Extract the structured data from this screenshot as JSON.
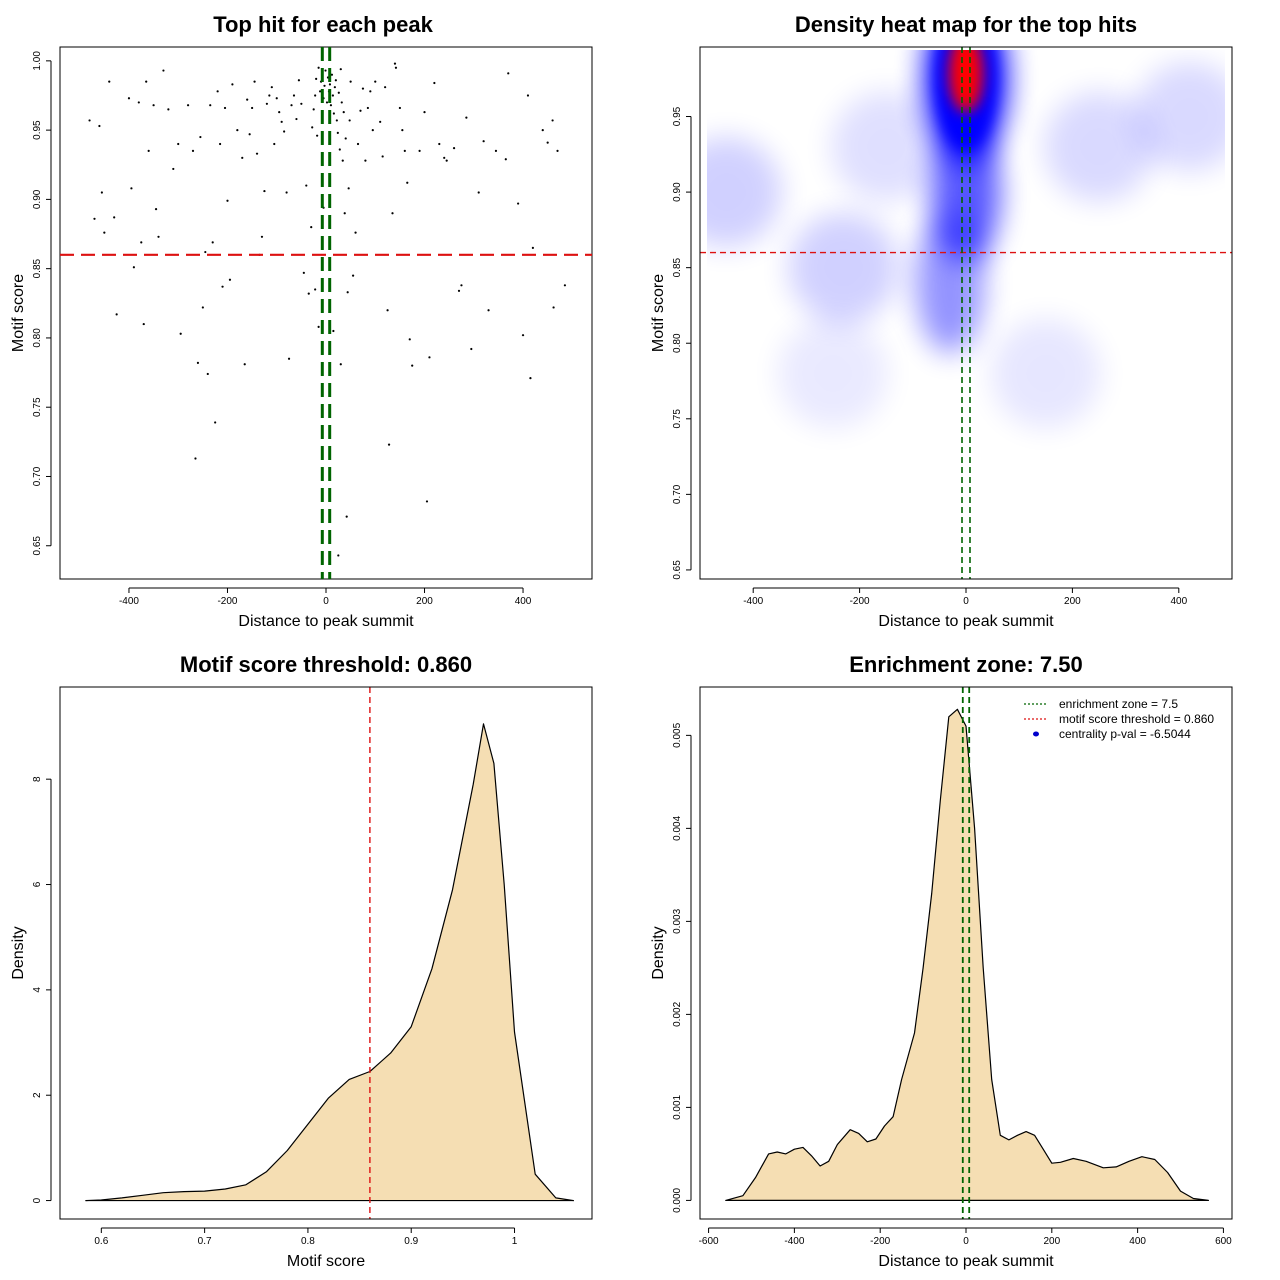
{
  "chart_data": [
    {
      "id": "scatter",
      "type": "scatter",
      "title": "Top hit for each peak",
      "xlabel": "Distance to peak summit",
      "ylabel": "Motif score",
      "xlim": [
        -540,
        540
      ],
      "ylim": [
        0.626,
        1.01
      ],
      "xticks": [
        -400,
        -200,
        0,
        200,
        400
      ],
      "yticks": [
        0.65,
        0.7,
        0.75,
        0.8,
        0.85,
        0.9,
        0.95,
        1.0
      ],
      "hline": {
        "y": 0.86,
        "color": "#dd1111"
      },
      "vlines": {
        "x": [
          -7.5,
          7.5
        ],
        "color": "#006400"
      },
      "point_color": "#000000",
      "points": [
        [
          -480,
          0.957
        ],
        [
          -470,
          0.886
        ],
        [
          -460,
          0.953
        ],
        [
          -455,
          0.905
        ],
        [
          -450,
          0.876
        ],
        [
          -440,
          0.985
        ],
        [
          -430,
          0.887
        ],
        [
          -425,
          0.817
        ],
        [
          -400,
          0.973
        ],
        [
          -395,
          0.908
        ],
        [
          -390,
          0.851
        ],
        [
          -380,
          0.97
        ],
        [
          -375,
          0.869
        ],
        [
          -370,
          0.81
        ],
        [
          -365,
          0.985
        ],
        [
          -360,
          0.935
        ],
        [
          -350,
          0.968
        ],
        [
          -345,
          0.893
        ],
        [
          -340,
          0.873
        ],
        [
          -330,
          0.993
        ],
        [
          -320,
          0.965
        ],
        [
          -310,
          0.922
        ],
        [
          -300,
          0.94
        ],
        [
          -295,
          0.803
        ],
        [
          -280,
          0.968
        ],
        [
          -270,
          0.935
        ],
        [
          -265,
          0.713
        ],
        [
          -260,
          0.782
        ],
        [
          -255,
          0.945
        ],
        [
          -250,
          0.822
        ],
        [
          -245,
          0.862
        ],
        [
          -240,
          0.774
        ],
        [
          -235,
          0.968
        ],
        [
          -230,
          0.869
        ],
        [
          -225,
          0.739
        ],
        [
          -220,
          0.978
        ],
        [
          -215,
          0.94
        ],
        [
          -210,
          0.837
        ],
        [
          -205,
          0.966
        ],
        [
          -200,
          0.899
        ],
        [
          -195,
          0.842
        ],
        [
          -190,
          0.983
        ],
        [
          -180,
          0.95
        ],
        [
          -170,
          0.93
        ],
        [
          -165,
          0.781
        ],
        [
          -160,
          0.972
        ],
        [
          -155,
          0.947
        ],
        [
          -150,
          0.966
        ],
        [
          -145,
          0.985
        ],
        [
          -140,
          0.933
        ],
        [
          -135,
          0.86
        ],
        [
          -130,
          0.873
        ],
        [
          -125,
          0.906
        ],
        [
          -120,
          0.969
        ],
        [
          -115,
          0.975
        ],
        [
          -110,
          0.981
        ],
        [
          -105,
          0.94
        ],
        [
          -100,
          0.973
        ],
        [
          -95,
          0.963
        ],
        [
          -90,
          0.956
        ],
        [
          -85,
          0.949
        ],
        [
          -80,
          0.905
        ],
        [
          -75,
          0.785
        ],
        [
          -70,
          0.968
        ],
        [
          -65,
          0.975
        ],
        [
          -60,
          0.958
        ],
        [
          -55,
          0.986
        ],
        [
          -50,
          0.969
        ],
        [
          -45,
          0.847
        ],
        [
          -40,
          0.91
        ],
        [
          -35,
          0.832
        ],
        [
          -30,
          0.88
        ],
        [
          -28,
          0.952
        ],
        [
          -25,
          0.965
        ],
        [
          -22,
          0.975
        ],
        [
          -20,
          0.987
        ],
        [
          -18,
          0.946
        ],
        [
          -15,
          0.995
        ],
        [
          -12,
          0.978
        ],
        [
          -10,
          0.985
        ],
        [
          -8,
          0.99
        ],
        [
          -5,
          0.973
        ],
        [
          -3,
          0.982
        ],
        [
          -1,
          0.993
        ],
        [
          2,
          0.97
        ],
        [
          4,
          0.988
        ],
        [
          6,
          0.978
        ],
        [
          8,
          0.983
        ],
        [
          10,
          0.968
        ],
        [
          12,
          0.99
        ],
        [
          14,
          0.975
        ],
        [
          16,
          0.962
        ],
        [
          18,
          0.981
        ],
        [
          20,
          0.986
        ],
        [
          22,
          0.957
        ],
        [
          24,
          0.948
        ],
        [
          26,
          0.977
        ],
        [
          28,
          0.936
        ],
        [
          30,
          0.994
        ],
        [
          32,
          0.97
        ],
        [
          34,
          0.928
        ],
        [
          36,
          0.963
        ],
        [
          38,
          0.89
        ],
        [
          40,
          0.944
        ],
        [
          42,
          0.671
        ],
        [
          44,
          0.833
        ],
        [
          46,
          0.908
        ],
        [
          48,
          0.957
        ],
        [
          50,
          0.985
        ],
        [
          55,
          0.845
        ],
        [
          60,
          0.876
        ],
        [
          65,
          0.94
        ],
        [
          70,
          0.964
        ],
        [
          75,
          0.98
        ],
        [
          80,
          0.928
        ],
        [
          85,
          0.966
        ],
        [
          90,
          0.978
        ],
        [
          95,
          0.95
        ],
        [
          100,
          0.985
        ],
        [
          110,
          0.956
        ],
        [
          115,
          0.931
        ],
        [
          120,
          0.981
        ],
        [
          125,
          0.82
        ],
        [
          128,
          0.723
        ],
        [
          135,
          0.89
        ],
        [
          140,
          0.998
        ],
        [
          142,
          0.995
        ],
        [
          150,
          0.966
        ],
        [
          155,
          0.95
        ],
        [
          160,
          0.935
        ],
        [
          165,
          0.912
        ],
        [
          170,
          0.799
        ],
        [
          175,
          0.78
        ],
        [
          190,
          0.935
        ],
        [
          200,
          0.963
        ],
        [
          205,
          0.682
        ],
        [
          210,
          0.786
        ],
        [
          220,
          0.984
        ],
        [
          230,
          0.94
        ],
        [
          240,
          0.93
        ],
        [
          245,
          0.928
        ],
        [
          260,
          0.937
        ],
        [
          270,
          0.834
        ],
        [
          275,
          0.838
        ],
        [
          285,
          0.959
        ],
        [
          295,
          0.792
        ],
        [
          310,
          0.905
        ],
        [
          320,
          0.942
        ],
        [
          330,
          0.82
        ],
        [
          345,
          0.935
        ],
        [
          365,
          0.929
        ],
        [
          370,
          0.991
        ],
        [
          390,
          0.897
        ],
        [
          400,
          0.802
        ],
        [
          410,
          0.975
        ],
        [
          415,
          0.771
        ],
        [
          420,
          0.865
        ],
        [
          440,
          0.95
        ],
        [
          450,
          0.941
        ],
        [
          460,
          0.957
        ],
        [
          462,
          0.822
        ],
        [
          470,
          0.935
        ],
        [
          485,
          0.838
        ],
        [
          -15,
          0.808
        ],
        [
          15,
          0.805
        ],
        [
          25,
          0.643
        ],
        [
          -5,
          0.894
        ],
        [
          8,
          0.869
        ],
        [
          -22,
          0.835
        ],
        [
          30,
          0.781
        ]
      ]
    },
    {
      "id": "heatmap",
      "type": "heatmap",
      "title": "Density heat map for the top hits",
      "xlabel": "Distance to peak summit",
      "ylabel": "Motif score",
      "xlim": [
        -500,
        500
      ],
      "ylim": [
        0.644,
        0.996
      ],
      "xticks": [
        -400,
        -200,
        0,
        200,
        400
      ],
      "yticks": [
        0.65,
        0.7,
        0.75,
        0.8,
        0.85,
        0.9,
        0.95
      ],
      "colorscale": [
        "#ffffff",
        "#0000ff",
        "#ff0000"
      ],
      "hline": {
        "y": 0.86,
        "color": "#dd1111"
      },
      "vlines": {
        "x": [
          -7.5,
          7.5
        ],
        "color": "#006400"
      },
      "density_peaks": [
        {
          "x": 0,
          "y": 0.975,
          "intensity": 1.0
        },
        {
          "x": 0,
          "y": 0.9,
          "intensity": 0.55
        },
        {
          "x": -30,
          "y": 0.84,
          "intensity": 0.35
        },
        {
          "x": -450,
          "y": 0.9,
          "intensity": 0.15
        },
        {
          "x": -230,
          "y": 0.85,
          "intensity": 0.15
        },
        {
          "x": 250,
          "y": 0.93,
          "intensity": 0.12
        },
        {
          "x": 420,
          "y": 0.95,
          "intensity": 0.12
        },
        {
          "x": -150,
          "y": 0.93,
          "intensity": 0.1
        },
        {
          "x": 150,
          "y": 0.78,
          "intensity": 0.08
        },
        {
          "x": -250,
          "y": 0.78,
          "intensity": 0.07
        }
      ]
    },
    {
      "id": "score-density",
      "type": "area",
      "title": "Motif score threshold: 0.860",
      "xlabel": "Motif score",
      "ylabel": "Density",
      "xlim": [
        0.56,
        1.075
      ],
      "ylim": [
        -0.35,
        9.75
      ],
      "xticks": [
        0.6,
        0.7,
        0.8,
        0.9,
        1.0
      ],
      "yticks": [
        0,
        2,
        4,
        6,
        8
      ],
      "fill_color": "#f5deb3",
      "vline": {
        "x": 0.86,
        "color": "#dd1111"
      },
      "x": [
        0.585,
        0.6,
        0.62,
        0.64,
        0.66,
        0.68,
        0.7,
        0.72,
        0.74,
        0.76,
        0.78,
        0.8,
        0.82,
        0.84,
        0.86,
        0.88,
        0.9,
        0.92,
        0.94,
        0.96,
        0.97,
        0.98,
        0.99,
        1.0,
        1.02,
        1.04,
        1.057
      ],
      "y": [
        0.0,
        0.01,
        0.05,
        0.1,
        0.15,
        0.17,
        0.18,
        0.22,
        0.3,
        0.55,
        0.95,
        1.45,
        1.95,
        2.3,
        2.45,
        2.8,
        3.3,
        4.4,
        5.9,
        7.9,
        9.05,
        8.3,
        6.0,
        3.2,
        0.5,
        0.05,
        0.0
      ]
    },
    {
      "id": "distance-density",
      "type": "area",
      "title": "Enrichment zone: 7.50",
      "xlabel": "Distance to peak summit",
      "ylabel": "Density",
      "xlim": [
        -620,
        620
      ],
      "ylim": [
        -0.0002,
        0.00552
      ],
      "xticks": [
        -600,
        -400,
        -200,
        0,
        200,
        400,
        600
      ],
      "yticks": [
        0.0,
        0.001,
        0.002,
        0.003,
        0.004,
        0.005
      ],
      "ytick_labels": [
        "0.000",
        "0.001",
        "0.002",
        "0.003",
        "0.004",
        "0.005"
      ],
      "fill_color": "#f5deb3",
      "vlines": {
        "x": [
          -7.5,
          7.5
        ],
        "color": "#006400"
      },
      "x": [
        -560,
        -520,
        -490,
        -460,
        -440,
        -420,
        -400,
        -380,
        -360,
        -340,
        -320,
        -300,
        -270,
        -250,
        -230,
        -210,
        -190,
        -170,
        -150,
        -120,
        -100,
        -80,
        -60,
        -40,
        -20,
        0,
        20,
        40,
        60,
        80,
        100,
        120,
        140,
        160,
        180,
        200,
        220,
        250,
        280,
        320,
        350,
        380,
        410,
        440,
        470,
        500,
        530,
        565
      ],
      "y": [
        0.0,
        5e-05,
        0.00025,
        0.0005,
        0.00052,
        0.0005,
        0.00055,
        0.00057,
        0.00048,
        0.00037,
        0.00042,
        0.0006,
        0.00076,
        0.00072,
        0.00063,
        0.00066,
        0.0008,
        0.0009,
        0.0013,
        0.0018,
        0.0025,
        0.0033,
        0.0043,
        0.0052,
        0.00528,
        0.0051,
        0.004,
        0.0025,
        0.0013,
        0.0007,
        0.00065,
        0.0007,
        0.00074,
        0.0007,
        0.00055,
        0.0004,
        0.00041,
        0.00045,
        0.00042,
        0.00035,
        0.00036,
        0.00042,
        0.00047,
        0.00044,
        0.0003,
        0.0001,
        2e-05,
        0.0
      ],
      "legend": [
        {
          "label": "enrichment zone = 7.5",
          "color": "#006400",
          "kind": "dotted-line"
        },
        {
          "label": "motif score threshold = 0.860",
          "color": "#dd1111",
          "kind": "dotted-line"
        },
        {
          "label": "centrality p-val = -6.5044",
          "color": "#0000cc",
          "kind": "point"
        }
      ],
      "legend_position": "top-right"
    }
  ]
}
